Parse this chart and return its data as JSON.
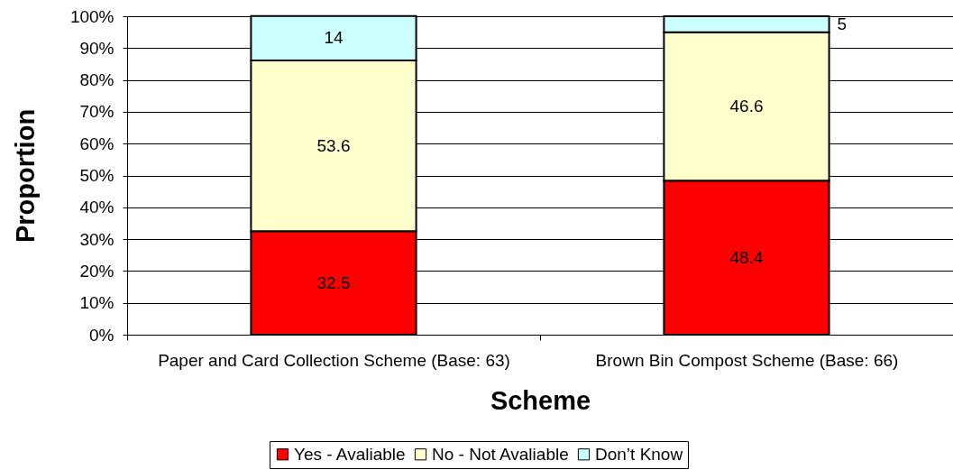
{
  "chart_data": {
    "type": "bar",
    "stacked": true,
    "xlabel": "Scheme",
    "ylabel": "Proportion",
    "categories": [
      "Paper and Card Collection Scheme (Base: 63)",
      "Brown Bin Compost Scheme (Base: 66)"
    ],
    "series": [
      {
        "name": "Yes - Avaliable",
        "color": "#ff0000",
        "values": [
          32.5,
          48.4
        ]
      },
      {
        "name": "No - Not Avaliable",
        "color": "#ffffcc",
        "values": [
          53.6,
          46.6
        ]
      },
      {
        "name": "Don’t Know",
        "color": "#ccffff",
        "values": [
          14,
          5
        ]
      }
    ],
    "ylim": [
      0,
      100
    ],
    "yticks": [
      {
        "value": 0,
        "label": "0%"
      },
      {
        "value": 10,
        "label": "10%"
      },
      {
        "value": 20,
        "label": "20%"
      },
      {
        "value": 30,
        "label": "30%"
      },
      {
        "value": 40,
        "label": "40%"
      },
      {
        "value": 50,
        "label": "50%"
      },
      {
        "value": 60,
        "label": "60%"
      },
      {
        "value": 70,
        "label": "70%"
      },
      {
        "value": 80,
        "label": "80%"
      },
      {
        "value": 90,
        "label": "90%"
      },
      {
        "value": 100,
        "label": "100%"
      }
    ],
    "grid": "y",
    "legend": "bottom",
    "data_labels": true
  }
}
